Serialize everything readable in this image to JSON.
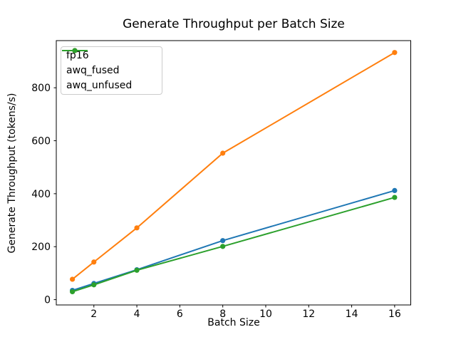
{
  "chart_data": {
    "type": "line",
    "title": "Generate Throughput per Batch Size",
    "xlabel": "Batch Size",
    "ylabel": "Generate Throughput (tokens/s)",
    "x": [
      1,
      2,
      4,
      8,
      16
    ],
    "series": [
      {
        "name": "fp16",
        "color": "#1f77b4",
        "values": [
          35,
          61,
          113,
          223,
          412
        ]
      },
      {
        "name": "awq_fused",
        "color": "#ff7f0e",
        "values": [
          77,
          142,
          271,
          553,
          933
        ]
      },
      {
        "name": "awq_unfused",
        "color": "#2ca02c",
        "values": [
          30,
          56,
          111,
          201,
          386
        ]
      }
    ],
    "xticks": [
      2,
      4,
      6,
      8,
      10,
      12,
      14,
      16
    ],
    "yticks": [
      0,
      200,
      400,
      600,
      800
    ],
    "xlim": [
      0.25,
      16.75
    ],
    "ylim": [
      -20,
      978
    ],
    "legend_position": "upper left",
    "grid": false,
    "marker": "o",
    "background_color": "#ffffff",
    "axis_color": "#000000"
  }
}
